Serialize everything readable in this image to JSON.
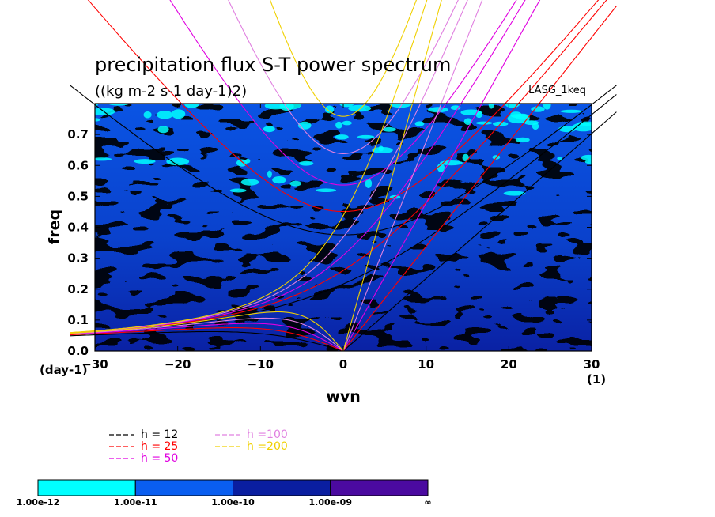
{
  "chart_data": {
    "type": "heatmap",
    "title": "precipitation flux S-T power spectrum",
    "subtitle": "((kg m-2 s-1 day-1)2)",
    "run_label": "LASG_1keq",
    "xlabel": "wvn",
    "ylabel": "freq",
    "x_units": "(1)",
    "y_units": "(day-1)",
    "xlim": [
      -30,
      30
    ],
    "ylim": [
      0.0,
      0.8
    ],
    "x_ticks": [
      "-30",
      "-20",
      "-10",
      "0",
      "10",
      "20",
      "30"
    ],
    "y_ticks": [
      "0.0",
      "0.1",
      "0.2",
      "0.3",
      "0.4",
      "0.5",
      "0.6",
      "0.7"
    ],
    "field_note": "mottled field of power values mostly between 1.00e-11 and 1.00e-10",
    "dispersion_curves": [
      {
        "label": "h = 12",
        "equivalent_depth": 12,
        "color": "#000000"
      },
      {
        "label": "h = 25",
        "equivalent_depth": 25,
        "color": "#ff0000"
      },
      {
        "label": "h = 50",
        "equivalent_depth": 50,
        "color": "#e000e0"
      },
      {
        "label": "h =100",
        "equivalent_depth": 100,
        "color": "#e080e0"
      },
      {
        "label": "h =200",
        "equivalent_depth": 200,
        "color": "#f0d000"
      }
    ],
    "colorbar": {
      "levels": [
        "1.00e-12",
        "1.00e-11",
        "1.00e-10",
        "1.00e-09",
        "∞"
      ],
      "colors": [
        "#00ffff",
        "#0a5ef0",
        "#0a1ea0",
        "#4b0aa0"
      ]
    }
  }
}
